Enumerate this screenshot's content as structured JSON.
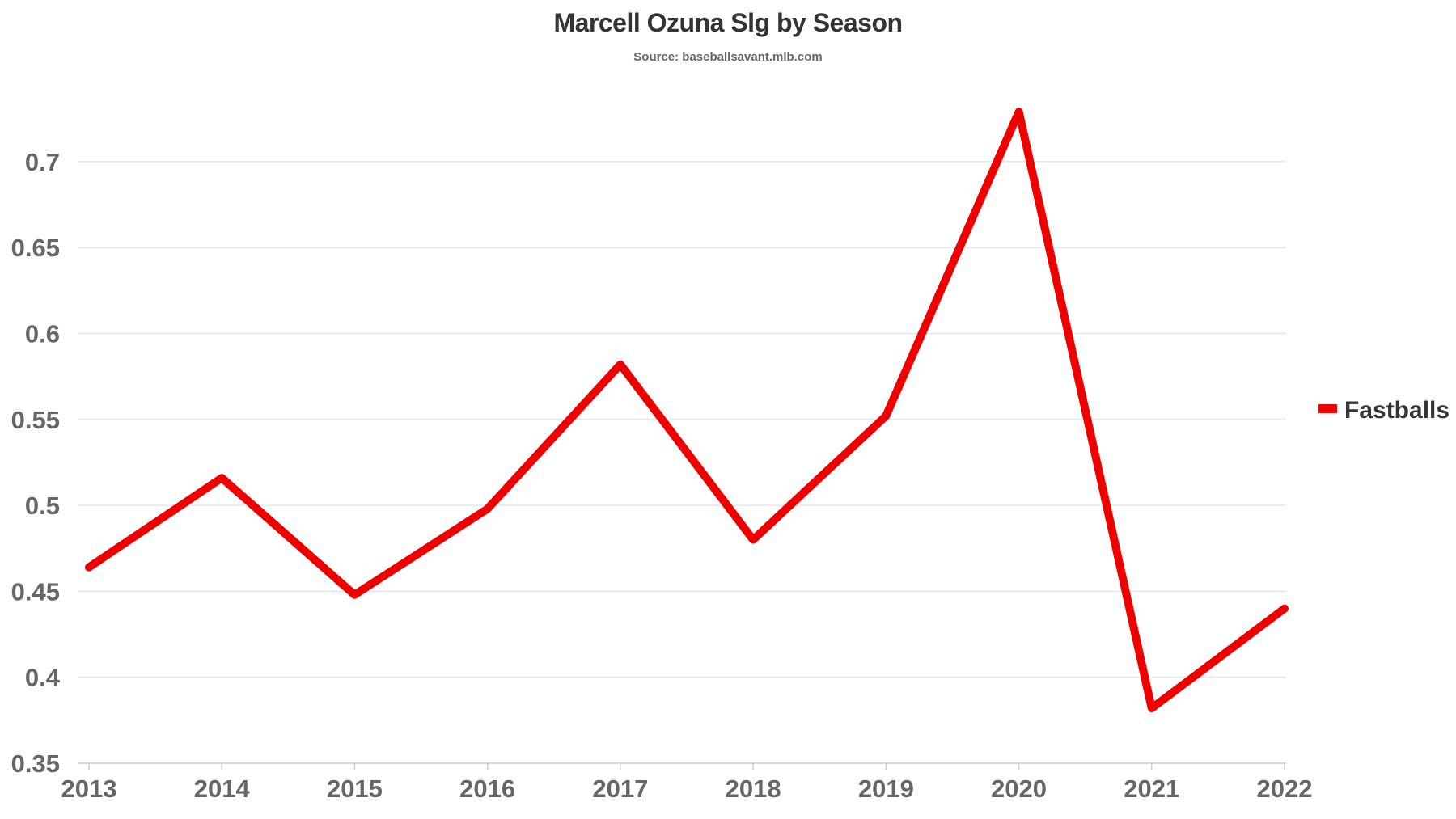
{
  "chart_data": {
    "type": "line",
    "title": "Marcell Ozuna Slg by Season",
    "subtitle": "Source: baseballsavant.mlb.com",
    "xlabel": "",
    "ylabel": "",
    "categories": [
      "2013",
      "2014",
      "2015",
      "2016",
      "2017",
      "2018",
      "2019",
      "2020",
      "2021",
      "2022"
    ],
    "series": [
      {
        "name": "Fastballs",
        "color": "#ee0000",
        "values": [
          0.464,
          0.516,
          0.448,
          0.498,
          0.582,
          0.48,
          0.552,
          0.729,
          0.382,
          0.44
        ]
      }
    ],
    "ylim": [
      0.35,
      0.7
    ],
    "yticks": [
      "0.35",
      "0.4",
      "0.45",
      "0.5",
      "0.55",
      "0.6",
      "0.65",
      "0.7"
    ],
    "grid": true,
    "legend_position": "right"
  }
}
